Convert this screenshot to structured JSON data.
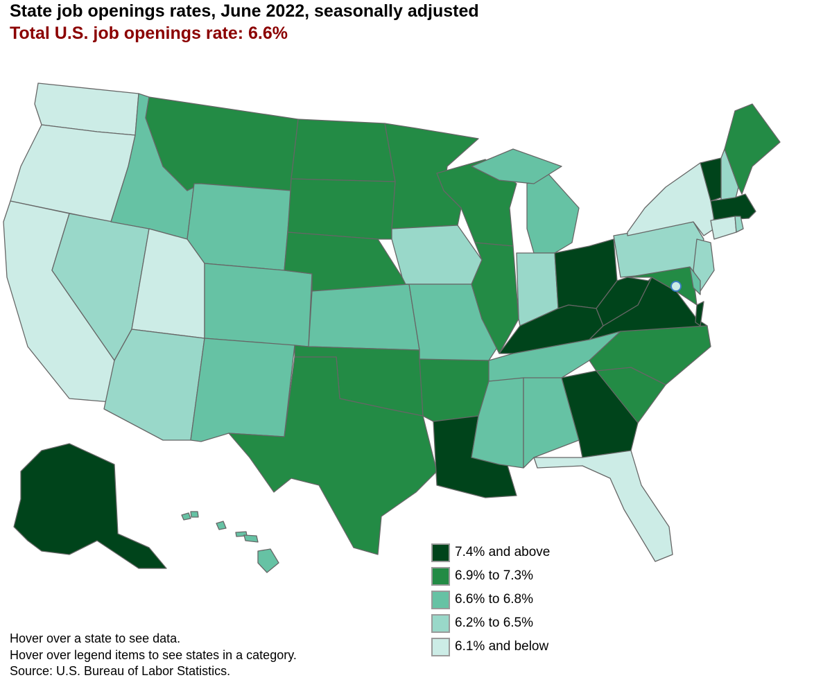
{
  "title": "State job openings rates, June 2022, seasonally adjusted",
  "subtitle": "Total U.S. job openings rate: 6.6%",
  "legend": [
    {
      "label": "7.4% and above",
      "color": "#00441b"
    },
    {
      "label": "6.9% to 7.3%",
      "color": "#238b45"
    },
    {
      "label": "6.6% to 6.8%",
      "color": "#66c2a4"
    },
    {
      "label": "6.2% to 6.5%",
      "color": "#99d8c9"
    },
    {
      "label": "6.1% and below",
      "color": "#ccece6"
    }
  ],
  "states": {
    "AK": 0,
    "LA": 0,
    "GA": 0,
    "KY": 0,
    "WV": 0,
    "VA": 0,
    "OH": 0,
    "MA": 0,
    "VT": 0,
    "MT": 1,
    "ND": 1,
    "SD": 1,
    "MN": 1,
    "WI": 1,
    "NE": 1,
    "IL": 1,
    "OK": 1,
    "TX": 1,
    "AR": 1,
    "NC": 1,
    "SC": 1,
    "ME": 1,
    "MD": 1,
    "ID": 2,
    "WY": 2,
    "CO": 2,
    "KS": 2,
    "MO": 2,
    "NM": 2,
    "MI": 2,
    "TN": 2,
    "MS": 2,
    "AL": 2,
    "DE": 2,
    "HI": 2,
    "NV": 3,
    "AZ": 3,
    "IA": 3,
    "IN": 3,
    "PA": 3,
    "NJ": 3,
    "NH": 3,
    "RI": 3,
    "WA": 4,
    "OR": 4,
    "CA": 4,
    "UT": 4,
    "NY": 4,
    "CT": 4,
    "FL": 4,
    "DC": 4
  },
  "notes": [
    "Hover over a state to see data.",
    "Hover over legend items to see states in a category.",
    "Source: U.S. Bureau of Labor Statistics."
  ]
}
